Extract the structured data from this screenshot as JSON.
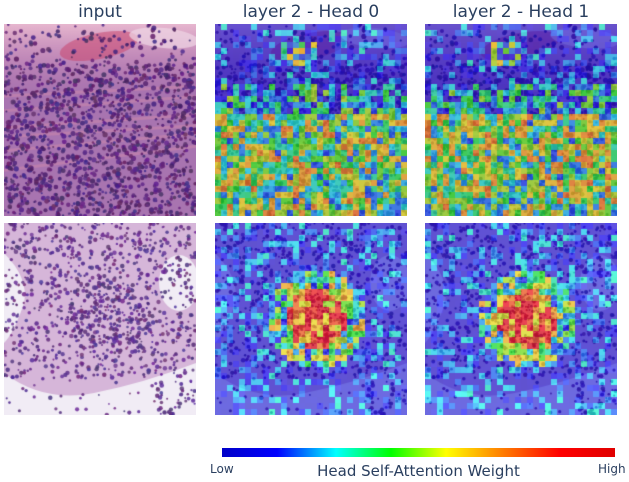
{
  "columns": [
    {
      "title": "input"
    },
    {
      "title": "layer 2 - Head 0"
    },
    {
      "title": "layer 2 - Head 1"
    }
  ],
  "rows": [
    {
      "image": "tissue-sample-1-histology",
      "attention_focus": "lower-half-dense-cells"
    },
    {
      "image": "tissue-sample-2-histology",
      "attention_focus": "central-cluster"
    }
  ],
  "colorbar": {
    "title": "Head Self-Attention Weight",
    "low_label": "Low",
    "high_label": "High",
    "colormap": "jet",
    "colors": [
      "#0000c8",
      "#0000ff",
      "#00ffff",
      "#00ff00",
      "#ffff00",
      "#ff8000",
      "#ff0000",
      "#e00000"
    ]
  },
  "colors": {
    "tissue_purple": "#6a3f8f",
    "tissue_pink": "#d993c0",
    "background_pale": "#ece6f2",
    "text": "#2a3f5f"
  }
}
